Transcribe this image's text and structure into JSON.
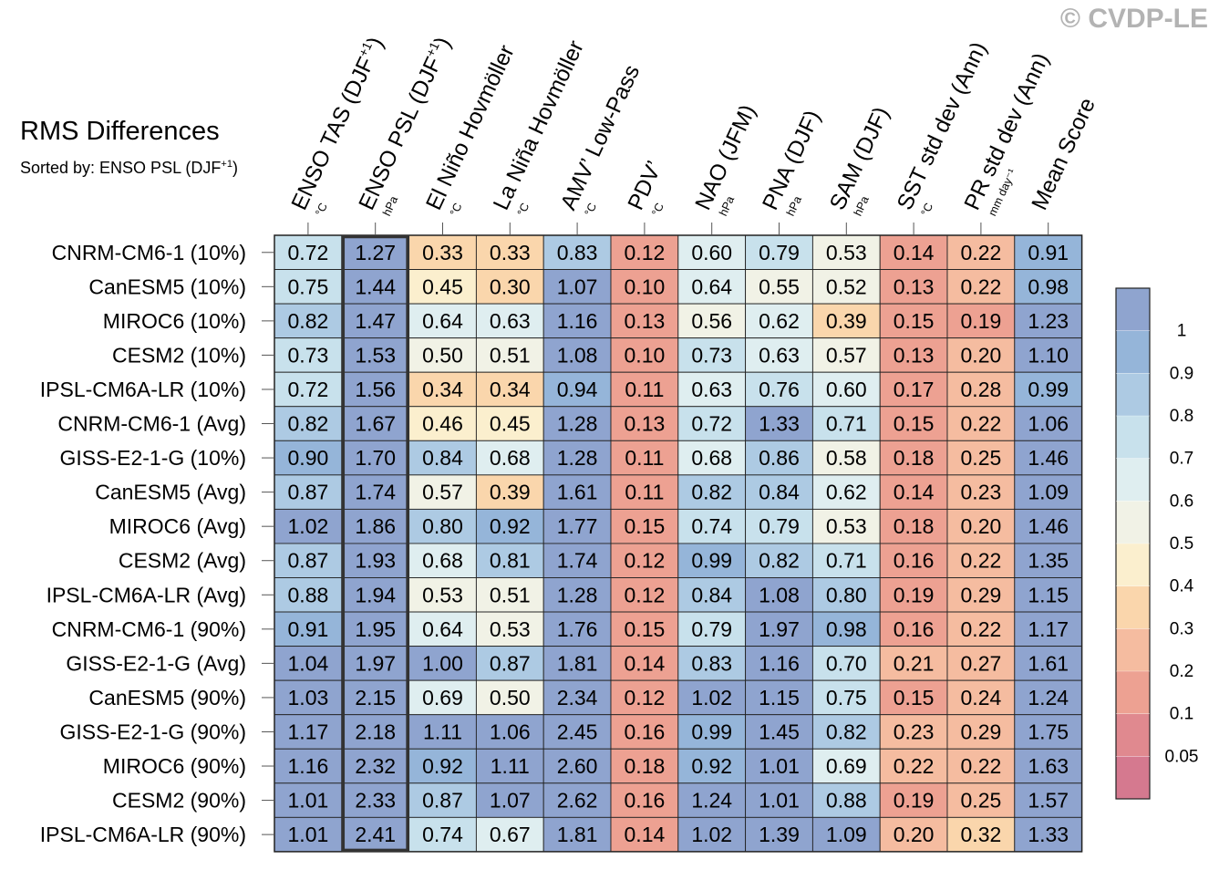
{
  "copyright": "© CVDP-LE",
  "chart_data": {
    "type": "heatmap",
    "title": "RMS Differences",
    "subtitle_prefix": "Sorted by: ENSO PSL (DJF",
    "subtitle_sup": "+1",
    "subtitle_suffix": ")",
    "highlighted_column": "ENSO PSL (DJF+1)",
    "columns": [
      {
        "label": "ENSO TAS (DJF",
        "sup": "+1",
        "tail": ")",
        "unit": "°C"
      },
      {
        "label": "ENSO PSL (DJF",
        "sup": "+1",
        "tail": ")",
        "unit": "hPa"
      },
      {
        "label": "El Niño Hovmöller",
        "sup": "",
        "tail": "",
        "unit": "°C"
      },
      {
        "label": "La Niña Hovmöller",
        "sup": "",
        "tail": "",
        "unit": "°C"
      },
      {
        "label": "AMV’ Low-Pass",
        "sup": "",
        "tail": "",
        "unit": "°C"
      },
      {
        "label": "PDV’",
        "sup": "",
        "tail": "",
        "unit": "°C"
      },
      {
        "label": "NAO (JFM)",
        "sup": "",
        "tail": "",
        "unit": "hPa"
      },
      {
        "label": "PNA (DJF)",
        "sup": "",
        "tail": "",
        "unit": "hPa"
      },
      {
        "label": "SAM (DJF)",
        "sup": "",
        "tail": "",
        "unit": "hPa"
      },
      {
        "label": "SST std dev (Ann)",
        "sup": "",
        "tail": "",
        "unit": "°C"
      },
      {
        "label": "PR std dev (Ann)",
        "sup": "",
        "tail": "",
        "unit": "mm day⁻¹"
      },
      {
        "label": "Mean Score",
        "sup": "",
        "tail": "",
        "unit": ""
      }
    ],
    "rows": [
      "CNRM-CM6-1 (10%)",
      "CanESM5 (10%)",
      "MIROC6 (10%)",
      "CESM2 (10%)",
      "IPSL-CM6A-LR (10%)",
      "CNRM-CM6-1 (Avg)",
      "GISS-E2-1-G (10%)",
      "CanESM5 (Avg)",
      "MIROC6 (Avg)",
      "CESM2 (Avg)",
      "IPSL-CM6A-LR (Avg)",
      "CNRM-CM6-1 (90%)",
      "GISS-E2-1-G (Avg)",
      "CanESM5 (90%)",
      "GISS-E2-1-G (90%)",
      "MIROC6 (90%)",
      "CESM2 (90%)",
      "IPSL-CM6A-LR (90%)"
    ],
    "values": [
      [
        "0.72",
        "1.27",
        "0.33",
        "0.33",
        "0.83",
        "0.12",
        "0.60",
        "0.79",
        "0.53",
        "0.14",
        "0.22",
        "0.91"
      ],
      [
        "0.75",
        "1.44",
        "0.45",
        "0.30",
        "1.07",
        "0.10",
        "0.64",
        "0.55",
        "0.52",
        "0.13",
        "0.22",
        "0.98"
      ],
      [
        "0.82",
        "1.47",
        "0.64",
        "0.63",
        "1.16",
        "0.13",
        "0.56",
        "0.62",
        "0.39",
        "0.15",
        "0.19",
        "1.23"
      ],
      [
        "0.73",
        "1.53",
        "0.50",
        "0.51",
        "1.08",
        "0.10",
        "0.73",
        "0.63",
        "0.57",
        "0.13",
        "0.20",
        "1.10"
      ],
      [
        "0.72",
        "1.56",
        "0.34",
        "0.34",
        "0.94",
        "0.11",
        "0.63",
        "0.76",
        "0.60",
        "0.17",
        "0.28",
        "0.99"
      ],
      [
        "0.82",
        "1.67",
        "0.46",
        "0.45",
        "1.28",
        "0.13",
        "0.72",
        "1.33",
        "0.71",
        "0.15",
        "0.22",
        "1.06"
      ],
      [
        "0.90",
        "1.70",
        "0.84",
        "0.68",
        "1.28",
        "0.11",
        "0.68",
        "0.86",
        "0.58",
        "0.18",
        "0.25",
        "1.46"
      ],
      [
        "0.87",
        "1.74",
        "0.57",
        "0.39",
        "1.61",
        "0.11",
        "0.82",
        "0.84",
        "0.62",
        "0.14",
        "0.23",
        "1.09"
      ],
      [
        "1.02",
        "1.86",
        "0.80",
        "0.92",
        "1.77",
        "0.15",
        "0.74",
        "0.79",
        "0.53",
        "0.18",
        "0.20",
        "1.46"
      ],
      [
        "0.87",
        "1.93",
        "0.68",
        "0.81",
        "1.74",
        "0.12",
        "0.99",
        "0.82",
        "0.71",
        "0.16",
        "0.22",
        "1.35"
      ],
      [
        "0.88",
        "1.94",
        "0.53",
        "0.51",
        "1.28",
        "0.12",
        "0.84",
        "1.08",
        "0.80",
        "0.19",
        "0.29",
        "1.15"
      ],
      [
        "0.91",
        "1.95",
        "0.64",
        "0.53",
        "1.76",
        "0.15",
        "0.79",
        "1.97",
        "0.98",
        "0.16",
        "0.22",
        "1.17"
      ],
      [
        "1.04",
        "1.97",
        "1.00",
        "0.87",
        "1.81",
        "0.14",
        "0.83",
        "1.16",
        "0.70",
        "0.21",
        "0.27",
        "1.61"
      ],
      [
        "1.03",
        "2.15",
        "0.69",
        "0.50",
        "2.34",
        "0.12",
        "1.02",
        "1.15",
        "0.75",
        "0.15",
        "0.24",
        "1.24"
      ],
      [
        "1.17",
        "2.18",
        "1.11",
        "1.06",
        "2.45",
        "0.16",
        "0.99",
        "1.45",
        "0.82",
        "0.23",
        "0.29",
        "1.75"
      ],
      [
        "1.16",
        "2.32",
        "0.92",
        "1.11",
        "2.60",
        "0.18",
        "0.92",
        "1.01",
        "0.69",
        "0.22",
        "0.22",
        "1.63"
      ],
      [
        "1.01",
        "2.33",
        "0.87",
        "1.07",
        "2.62",
        "0.16",
        "1.24",
        "1.01",
        "0.88",
        "0.19",
        "0.25",
        "1.57"
      ],
      [
        "1.01",
        "2.41",
        "0.74",
        "0.67",
        "1.81",
        "0.14",
        "1.02",
        "1.39",
        "1.09",
        "0.20",
        "0.32",
        "1.33"
      ]
    ],
    "colorbar": {
      "bounds": [
        0.05,
        0.1,
        0.2,
        0.3,
        0.4,
        0.5,
        0.6,
        0.7,
        0.8,
        0.9,
        1
      ],
      "tick_labels": [
        "0.05",
        "0.1",
        "0.2",
        "0.3",
        "0.4",
        "0.5",
        "0.6",
        "0.7",
        "0.8",
        "0.9",
        "1"
      ],
      "colors": [
        "#d5798f",
        "#e0898f",
        "#eda192",
        "#f5bca0",
        "#fad6ac",
        "#fbefce",
        "#f1f2e6",
        "#dfeef0",
        "#c8e1ec",
        "#adcae3",
        "#95b5d9",
        "#8fa4cf"
      ]
    }
  }
}
